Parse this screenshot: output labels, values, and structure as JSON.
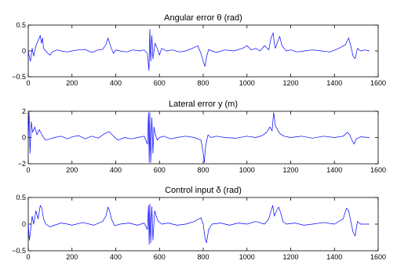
{
  "colors": {
    "series": "#0000ff",
    "axes": "#000000",
    "background": "#ffffff"
  },
  "chart_data": [
    {
      "type": "line",
      "title": "Angular error θ (rad)",
      "xlabel": "",
      "ylabel": "",
      "xlim": [
        0,
        1600
      ],
      "ylim": [
        -0.5,
        0.5
      ],
      "xticks": [
        0,
        200,
        400,
        600,
        800,
        1000,
        1200,
        1400,
        1600
      ],
      "yticks": [
        -0.5,
        0,
        0.5
      ],
      "xtick_labels": [
        "0",
        "200",
        "400",
        "600",
        "800",
        "1000",
        "1200",
        "1400",
        "1600"
      ],
      "ytick_labels": [
        "−0.5",
        "0",
        "0.5"
      ],
      "series": [
        {
          "x": [
            0,
            5,
            10,
            18,
            25,
            35,
            45,
            55,
            60,
            65,
            70,
            80,
            90,
            100,
            110,
            130,
            150,
            180,
            200,
            230,
            260,
            290,
            320,
            340,
            355,
            365,
            372,
            380,
            390,
            400,
            420,
            450,
            480,
            510,
            530,
            545,
            552,
            556,
            560,
            565,
            570,
            580,
            590,
            600,
            610,
            630,
            660,
            690,
            720,
            750,
            775,
            790,
            800,
            808,
            815,
            825,
            840,
            860,
            900,
            940,
            980,
            1000,
            1020,
            1040,
            1060,
            1080,
            1100,
            1110,
            1120,
            1125,
            1130,
            1140,
            1150,
            1160,
            1170,
            1180,
            1200,
            1230,
            1260,
            1300,
            1340,
            1380,
            1420,
            1450,
            1465,
            1475,
            1485,
            1495,
            1505,
            1520,
            1540,
            1560
          ],
          "y": [
            0,
            -0.12,
            -0.2,
            0.05,
            -0.1,
            0.1,
            0.2,
            0.3,
            0.15,
            0.25,
            0.05,
            0.0,
            -0.05,
            -0.08,
            -0.02,
            0.02,
            0.0,
            -0.02,
            0.0,
            0.02,
            0.03,
            -0.03,
            0.02,
            0.03,
            0.12,
            0.25,
            0.15,
            0.05,
            -0.05,
            0.02,
            0.0,
            -0.02,
            0.02,
            0.0,
            0.02,
            -0.05,
            -0.38,
            0.42,
            -0.2,
            0.3,
            -0.15,
            0.15,
            0.05,
            -0.08,
            0.05,
            0.0,
            0.02,
            -0.02,
            0.0,
            0.05,
            0.1,
            -0.05,
            -0.2,
            -0.3,
            -0.12,
            0.03,
            0.0,
            -0.03,
            0.02,
            0.0,
            0.05,
            0.1,
            0.02,
            0.05,
            0.0,
            0.1,
            0.02,
            0.25,
            0.35,
            0.15,
            0.05,
            0.18,
            0.28,
            0.1,
            0.05,
            0.0,
            0.02,
            -0.02,
            0.0,
            0.02,
            0.0,
            -0.02,
            0.05,
            0.12,
            0.25,
            0.1,
            -0.1,
            -0.15,
            0.05,
            0.0,
            0.02,
            0.0
          ]
        }
      ]
    },
    {
      "type": "line",
      "title": "Lateral error y (m)",
      "xlabel": "",
      "ylabel": "",
      "xlim": [
        0,
        1600
      ],
      "ylim": [
        -2,
        2
      ],
      "xticks": [
        0,
        200,
        400,
        600,
        800,
        1000,
        1200,
        1400,
        1600
      ],
      "yticks": [
        -2,
        0,
        2
      ],
      "xtick_labels": [
        "0",
        "200",
        "400",
        "600",
        "800",
        "1000",
        "1200",
        "1400",
        "1600"
      ],
      "ytick_labels": [
        "−2",
        "0",
        "2"
      ],
      "series": [
        {
          "x": [
            0,
            4,
            8,
            14,
            20,
            30,
            40,
            50,
            60,
            70,
            80,
            100,
            120,
            150,
            180,
            200,
            230,
            260,
            290,
            320,
            350,
            370,
            390,
            410,
            440,
            470,
            500,
            530,
            545,
            550,
            553,
            556,
            560,
            565,
            570,
            575,
            580,
            590,
            600,
            620,
            650,
            680,
            720,
            760,
            790,
            800,
            805,
            810,
            815,
            822,
            835,
            860,
            900,
            950,
            1000,
            1040,
            1070,
            1090,
            1105,
            1115,
            1122,
            1130,
            1140,
            1150,
            1170,
            1200,
            1250,
            1300,
            1350,
            1400,
            1440,
            1460,
            1470,
            1480,
            1490,
            1500,
            1520,
            1560
          ],
          "y": [
            0,
            1.9,
            -1.2,
            1.2,
            0.4,
            0.8,
            0.2,
            0.6,
            0.3,
            0.0,
            -0.2,
            -0.1,
            0.0,
            0.1,
            -0.1,
            0.05,
            0.15,
            -0.1,
            0.1,
            -0.05,
            0.3,
            0.45,
            0.1,
            -0.2,
            0.0,
            -0.1,
            0.0,
            0.1,
            -0.5,
            1.9,
            -1.9,
            1.9,
            -1.9,
            1.5,
            -1.2,
            0.8,
            0.3,
            -0.2,
            0.0,
            0.1,
            -0.1,
            0.0,
            0.1,
            0.0,
            -0.2,
            -1.2,
            -1.9,
            -0.8,
            -0.3,
            0.2,
            0.0,
            0.1,
            0.0,
            -0.05,
            0.1,
            0.0,
            0.15,
            0.4,
            0.8,
            0.5,
            1.9,
            0.9,
            0.6,
            0.3,
            0.1,
            0.0,
            0.1,
            -0.05,
            0.1,
            0.0,
            0.1,
            0.4,
            0.2,
            -0.2,
            -0.5,
            -0.1,
            0.05,
            0.0
          ]
        }
      ]
    },
    {
      "type": "line",
      "title": "Control input δ (rad)",
      "xlabel": "",
      "ylabel": "",
      "xlim": [
        0,
        1600
      ],
      "ylim": [
        -0.5,
        0.5
      ],
      "xticks": [
        0,
        200,
        400,
        600,
        800,
        1000,
        1200,
        1400,
        1600
      ],
      "yticks": [
        -0.5,
        0,
        0.5
      ],
      "xtick_labels": [
        "0",
        "200",
        "400",
        "600",
        "800",
        "1000",
        "1200",
        "1400",
        "1600"
      ],
      "ytick_labels": [
        "−0.5",
        "0",
        "0.5"
      ],
      "series": [
        {
          "x": [
            0,
            5,
            10,
            18,
            25,
            35,
            45,
            55,
            62,
            70,
            80,
            100,
            120,
            150,
            180,
            200,
            250,
            300,
            340,
            355,
            365,
            372,
            380,
            395,
            420,
            460,
            500,
            530,
            545,
            550,
            553,
            556,
            560,
            565,
            570,
            578,
            585,
            595,
            610,
            640,
            680,
            720,
            760,
            790,
            800,
            808,
            815,
            825,
            840,
            880,
            920,
            960,
            1000,
            1040,
            1080,
            1100,
            1110,
            1118,
            1125,
            1135,
            1145,
            1155,
            1165,
            1180,
            1220,
            1260,
            1300,
            1350,
            1400,
            1440,
            1455,
            1465,
            1475,
            1485,
            1495,
            1505,
            1520,
            1560
          ],
          "y": [
            0,
            -0.3,
            -0.15,
            0.15,
            0.0,
            0.25,
            0.1,
            0.35,
            0.3,
            0.1,
            0.0,
            -0.05,
            -0.02,
            0.02,
            0.0,
            -0.02,
            0.03,
            -0.02,
            0.05,
            0.15,
            0.32,
            0.25,
            0.1,
            -0.03,
            0.0,
            0.02,
            -0.02,
            0.02,
            -0.1,
            0.35,
            -0.38,
            0.38,
            -0.35,
            0.33,
            -0.3,
            0.25,
            0.15,
            0.05,
            0.0,
            0.02,
            -0.02,
            0.0,
            0.05,
            0.12,
            0.0,
            -0.25,
            -0.35,
            -0.1,
            0.0,
            0.02,
            -0.02,
            0.02,
            0.0,
            0.05,
            0.0,
            0.1,
            0.25,
            0.35,
            0.15,
            0.25,
            0.32,
            0.2,
            0.05,
            0.0,
            0.02,
            -0.02,
            0.0,
            0.03,
            0.0,
            0.1,
            0.3,
            0.25,
            0.05,
            -0.15,
            -0.22,
            0.05,
            0.0,
            0.0
          ]
        }
      ]
    }
  ]
}
